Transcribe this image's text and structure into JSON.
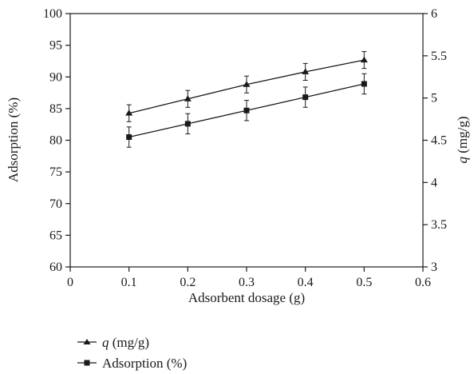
{
  "chart_data": {
    "type": "line",
    "xlabel": "Adsorbent dosage (g)",
    "ylabel_left": "Adsorption (%)",
    "ylabel_right_italic": "q",
    "ylabel_right_rest": " (mg/g)",
    "xlim": [
      0,
      0.6
    ],
    "xticks": [
      0,
      0.1,
      0.2,
      0.3,
      0.4,
      0.5,
      0.6
    ],
    "xtick_labels": [
      "0",
      "0.1",
      "0.2",
      "0.3",
      "0.4",
      "0.5",
      "0.6"
    ],
    "ylim_left": [
      60,
      100
    ],
    "yticks_left": [
      60,
      65,
      70,
      75,
      80,
      85,
      90,
      95,
      100
    ],
    "ytick_labels_left": [
      "60",
      "65",
      "70",
      "75",
      "80",
      "85",
      "90",
      "95",
      "100"
    ],
    "ylim_right": [
      3,
      6
    ],
    "yticks_right": [
      3,
      3.5,
      4,
      4.5,
      5,
      5.5,
      6
    ],
    "ytick_labels_right": [
      "3",
      "3.5",
      "4",
      "4.5",
      "5",
      "5.5",
      "6"
    ],
    "grid": false,
    "legend_placement": "bottom-left",
    "series": [
      {
        "name_italic": "q",
        "name_rest": " (mg/g)",
        "marker": "triangle",
        "axis": "right",
        "x": [
          0.1,
          0.2,
          0.3,
          0.4,
          0.5
        ],
        "y": [
          4.82,
          4.99,
          5.16,
          5.31,
          5.45
        ],
        "error": [
          0.1,
          0.1,
          0.1,
          0.1,
          0.1
        ]
      },
      {
        "name": "Adsorption (%)",
        "marker": "square",
        "axis": "left",
        "x": [
          0.1,
          0.2,
          0.3,
          0.4,
          0.5
        ],
        "y": [
          80.5,
          82.6,
          84.7,
          86.8,
          88.9
        ],
        "error": [
          1.6,
          1.6,
          1.6,
          1.6,
          1.6
        ]
      }
    ]
  },
  "colors": {
    "line": "#1a1a1a",
    "background": "#ffffff"
  }
}
